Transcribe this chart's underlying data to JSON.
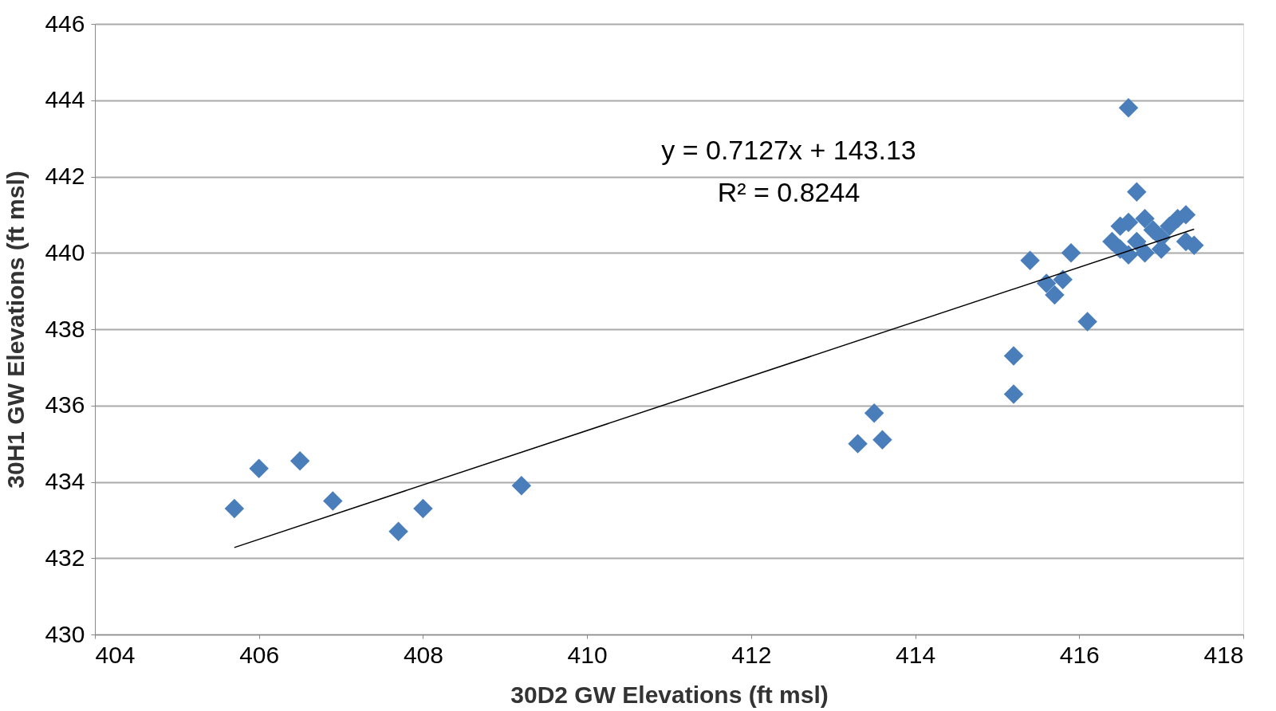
{
  "chart_data": {
    "type": "scatter",
    "xlabel": "30D2 GW Elevations (ft msl)",
    "ylabel": "30H1 GW Elevations (ft msl)",
    "xlim": [
      404,
      418
    ],
    "xticks": [
      404,
      406,
      408,
      410,
      412,
      414,
      416,
      418
    ],
    "ylim": [
      430,
      446
    ],
    "yticks": [
      430,
      432,
      434,
      436,
      438,
      440,
      442,
      444,
      446
    ],
    "grid": "y",
    "legend": false,
    "annotations": [
      "y = 0.7127x + 143.13",
      "R² = 0.8244"
    ],
    "series": [
      {
        "marker": "diamond",
        "color": "#4a7ebb",
        "x": [
          405.7,
          406.0,
          406.5,
          406.9,
          407.7,
          408.0,
          409.2,
          413.3,
          413.5,
          413.6,
          415.2,
          415.2,
          415.4,
          415.6,
          415.7,
          415.8,
          415.9,
          416.1,
          416.4,
          416.5,
          416.5,
          416.6,
          416.6,
          416.6,
          416.7,
          416.7,
          416.8,
          416.8,
          416.9,
          417.0,
          417.0,
          417.1,
          417.2,
          417.3,
          417.3,
          417.4
        ],
        "values": [
          433.3,
          434.35,
          434.55,
          433.5,
          432.7,
          433.3,
          433.9,
          435.0,
          435.8,
          435.1,
          437.3,
          436.3,
          439.8,
          439.2,
          438.9,
          439.3,
          440.0,
          438.2,
          440.3,
          440.7,
          440.1,
          443.8,
          439.95,
          440.8,
          441.6,
          440.3,
          440.9,
          440.0,
          440.6,
          440.4,
          440.1,
          440.7,
          440.9,
          441.0,
          440.3,
          440.2
        ]
      },
      {
        "type": "line",
        "marker": "none",
        "color": "#000000",
        "x": [
          405.7,
          417.4
        ],
        "values": [
          432.28,
          440.62
        ]
      }
    ]
  }
}
